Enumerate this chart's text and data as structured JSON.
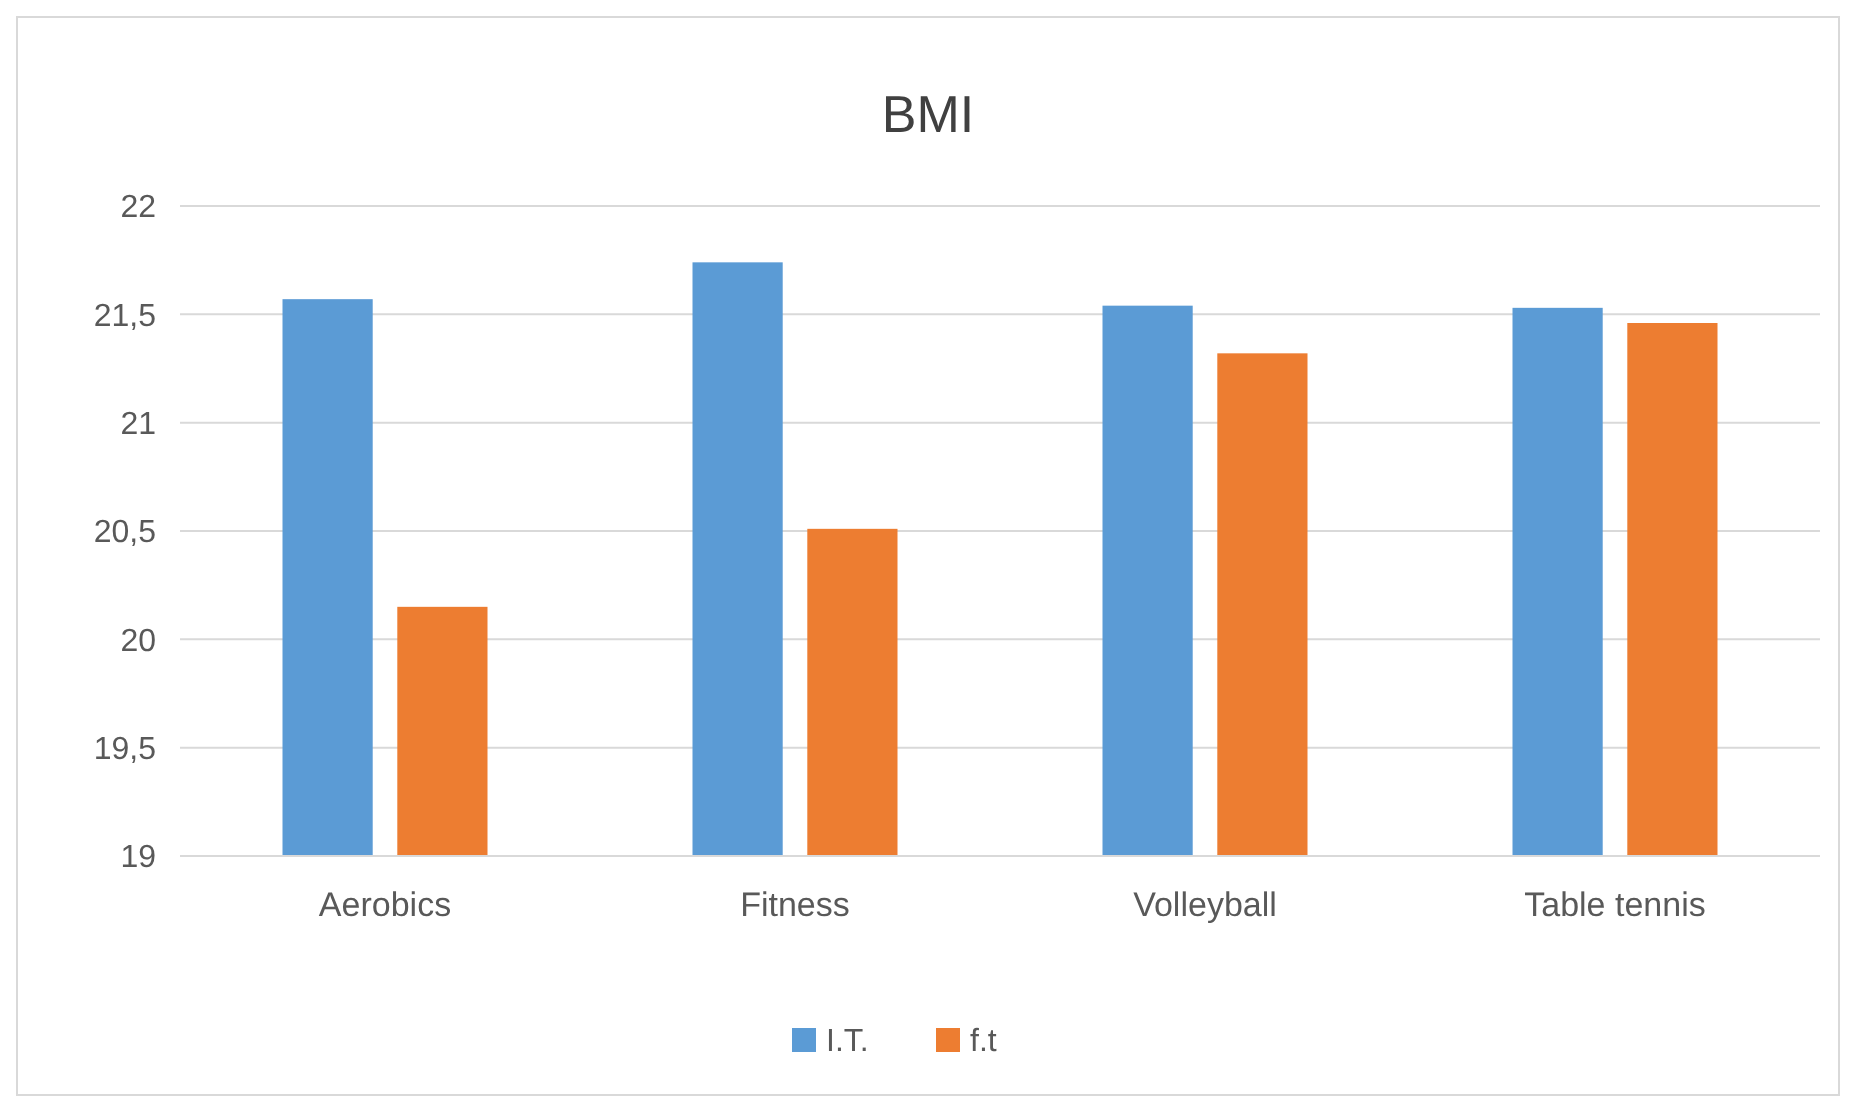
{
  "chart_data": {
    "type": "bar",
    "title": "BMI",
    "categories": [
      "Aerobics",
      "Fitness",
      "Volleyball",
      "Table tennis"
    ],
    "series": [
      {
        "name": "I.T.",
        "color": "#5b9bd5",
        "values": [
          21.57,
          21.74,
          21.54,
          21.53
        ]
      },
      {
        "name": "f.t",
        "color": "#ed7d31",
        "values": [
          20.15,
          20.51,
          21.32,
          21.46
        ]
      }
    ],
    "ylim": [
      19,
      22
    ],
    "yticks": [
      19,
      {
        "value": 19.5,
        "label": "19,5"
      },
      20,
      {
        "value": 20.5,
        "label": "20,5"
      },
      21,
      {
        "value": 21.5,
        "label": "21,5"
      },
      22
    ],
    "grid": "y",
    "legend": "bottom"
  }
}
